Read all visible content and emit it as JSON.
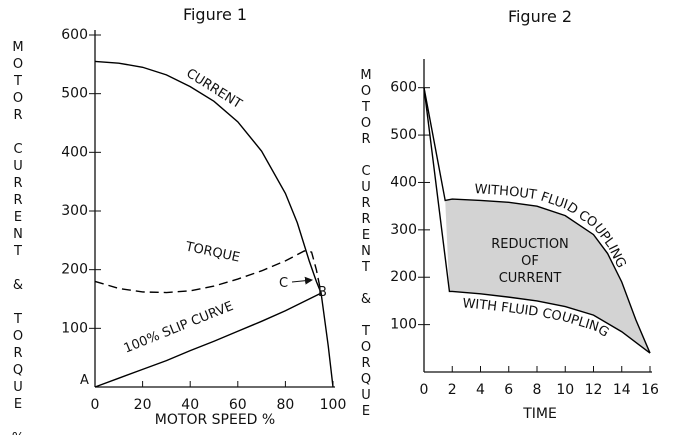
{
  "chart_data": [
    {
      "type": "line",
      "title": "Figure 1",
      "xlabel": "MOTOR SPEED %",
      "ylabel": "MOTOR CURRENT & TORQUE %",
      "xlim": [
        0,
        100
      ],
      "ylim": [
        0,
        600
      ],
      "xticks": [
        0,
        20,
        40,
        60,
        80,
        100
      ],
      "yticks": [
        100,
        200,
        300,
        400,
        500,
        600
      ],
      "series": [
        {
          "name": "CURRENT",
          "color": "#000000",
          "dashed": false,
          "x": [
            0,
            10,
            20,
            30,
            40,
            50,
            60,
            70,
            80,
            85,
            90,
            93,
            95,
            97,
            98,
            99,
            100
          ],
          "values": [
            555,
            552,
            545,
            532,
            512,
            487,
            452,
            402,
            330,
            280,
            215,
            180,
            160,
            100,
            70,
            35,
            0
          ]
        },
        {
          "name": "TORQUE",
          "color": "#000000",
          "dashed": true,
          "x": [
            0,
            10,
            20,
            30,
            40,
            50,
            60,
            70,
            80,
            88,
            91,
            93,
            95
          ],
          "values": [
            180,
            168,
            162,
            161,
            164,
            172,
            184,
            198,
            215,
            232,
            230,
            200,
            160
          ]
        },
        {
          "name": "100% SLIP CURVE",
          "color": "#000000",
          "dashed": false,
          "x": [
            0,
            10,
            20,
            30,
            40,
            50,
            60,
            70,
            80,
            90,
            95
          ],
          "values": [
            0,
            15,
            30,
            45,
            62,
            78,
            95,
            112,
            130,
            150,
            160
          ]
        }
      ],
      "annotations": [
        "A",
        "B",
        "C"
      ]
    },
    {
      "type": "line",
      "title": "Figure 2",
      "xlabel": "TIME",
      "ylabel": "MOTOR CURRENT & TORQUE %",
      "xlim": [
        0,
        16
      ],
      "ylim": [
        0,
        650
      ],
      "xticks": [
        0,
        2,
        4,
        6,
        8,
        10,
        12,
        14,
        16
      ],
      "yticks": [
        100,
        200,
        300,
        400,
        500,
        600
      ],
      "fill_between": "#d3d3d3",
      "series": [
        {
          "name": "WITHOUT FLUID COUPLING",
          "color": "#000000",
          "dashed": false,
          "x": [
            0,
            1.5,
            2,
            4,
            6,
            8,
            10,
            12,
            13,
            14,
            15,
            16
          ],
          "values": [
            600,
            362,
            365,
            362,
            358,
            350,
            330,
            290,
            250,
            190,
            110,
            40
          ]
        },
        {
          "name": "WITH FLUID COUPLING",
          "color": "#000000",
          "dashed": false,
          "x": [
            0,
            1.8,
            2,
            4,
            6,
            8,
            10,
            12,
            14,
            16
          ],
          "values": [
            600,
            170,
            170,
            165,
            158,
            150,
            138,
            120,
            85,
            40
          ]
        }
      ],
      "annotations": [
        [
          "REDUCTION",
          "OF",
          "CURRENT"
        ]
      ]
    }
  ]
}
